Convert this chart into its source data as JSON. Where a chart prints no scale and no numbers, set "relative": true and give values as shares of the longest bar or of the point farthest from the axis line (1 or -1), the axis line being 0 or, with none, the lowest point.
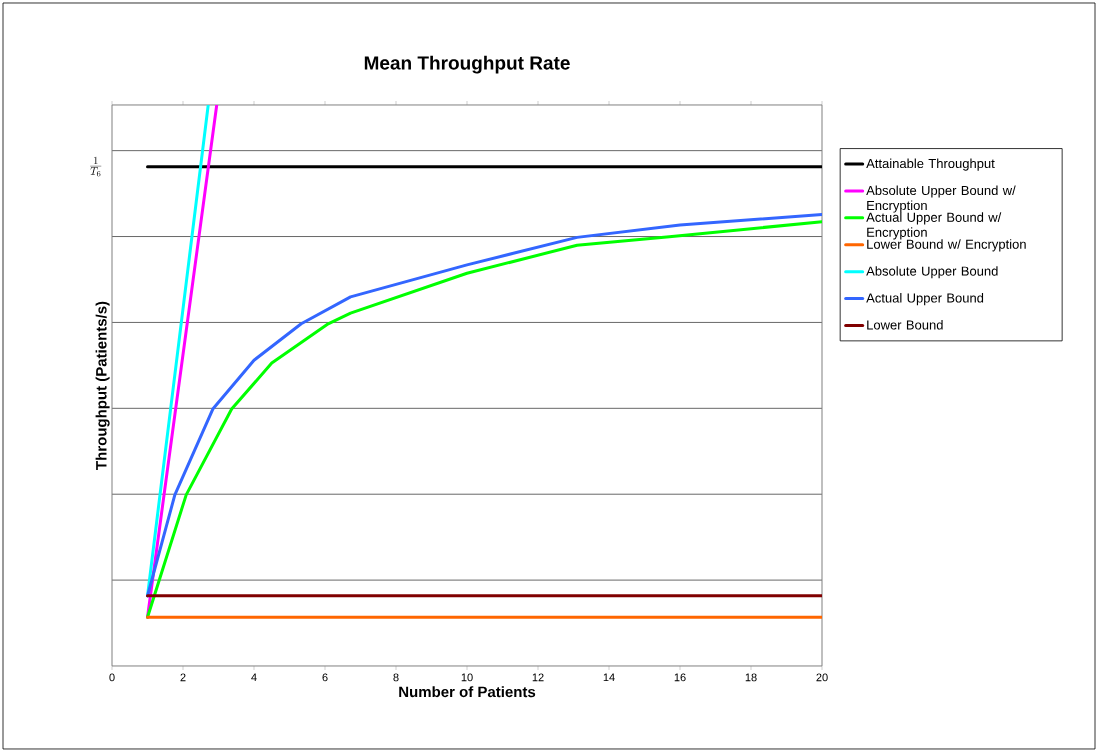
{
  "chart_data": {
    "type": "line",
    "title": "Mean Throughput Rate",
    "xlabel": "Number of Patients",
    "ylabel": "Throughput (Patients/s)",
    "relative": true,
    "xlim": [
      0,
      20
    ],
    "xticks": [
      0,
      2,
      4,
      6,
      8,
      10,
      12,
      14,
      16,
      18,
      20
    ],
    "grid": "y",
    "legend": "right",
    "marker": "none",
    "line_style": "solid",
    "annotations": [
      "\\frac{1}{T_6}"
    ],
    "series": [
      {
        "name": "Attainable Throughput",
        "color": "#000000",
        "x": [
          1,
          20
        ],
        "values": [
          0.89,
          0.89
        ]
      },
      {
        "name": "Absolute Upper Bound w/ Encryption",
        "color": "#ff00ff",
        "x": [
          1,
          2.95
        ],
        "values": [
          0.087,
          1.0
        ]
      },
      {
        "name": "Actual Upper Bound w/ Encryption",
        "color": "#00ff00",
        "x": [
          1,
          2.09,
          3.37,
          4.5,
          6.09,
          6.72,
          10,
          13.1,
          15.7,
          20
        ],
        "values": [
          0.087,
          0.305,
          0.458,
          0.54,
          0.61,
          0.629,
          0.7,
          0.75,
          0.765,
          0.792
        ]
      },
      {
        "name": "Lower Bound w/ Encryption",
        "color": "#ff6600",
        "x": [
          1,
          20
        ],
        "values": [
          0.087,
          0.087
        ]
      },
      {
        "name": "Absolute Upper Bound",
        "color": "#00ffff",
        "x": [
          1,
          2.71
        ],
        "values": [
          0.125,
          1.0
        ]
      },
      {
        "name": "Actual Upper Bound",
        "color": "#3366ff",
        "x": [
          1,
          1.77,
          2.84,
          4,
          5.33,
          6.72,
          10,
          13.1,
          16,
          20
        ],
        "values": [
          0.125,
          0.305,
          0.458,
          0.545,
          0.61,
          0.658,
          0.715,
          0.764,
          0.786,
          0.805
        ]
      },
      {
        "name": "Lower Bound",
        "color": "#800000",
        "x": [
          1,
          20
        ],
        "values": [
          0.125,
          0.125
        ]
      }
    ]
  }
}
